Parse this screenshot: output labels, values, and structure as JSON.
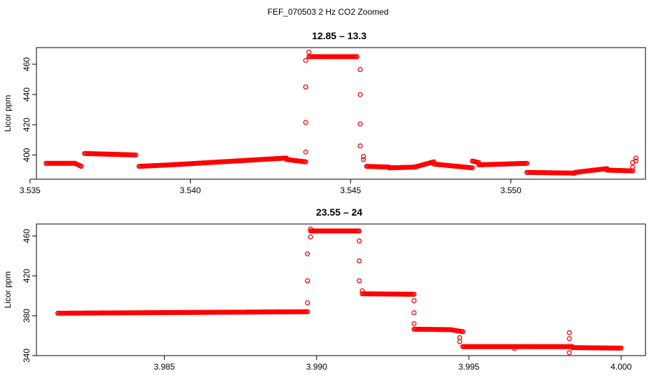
{
  "figure": {
    "title": "FEF_070503  2 Hz CO2 Zoomed",
    "point_color": "#ff0000"
  },
  "chart_data": [
    {
      "type": "scatter",
      "title": "12.85 – 13.3",
      "xlabel": "",
      "ylabel": "Licor ppm",
      "xlim": [
        3.5352,
        3.5542
      ],
      "ylim": [
        384,
        471
      ],
      "xticks": [
        3.535,
        3.54,
        3.545,
        3.55
      ],
      "xtick_labels": [
        "3.535",
        "3.540",
        "3.545",
        "3.550"
      ],
      "yticks": [
        400,
        420,
        440,
        460
      ],
      "ytick_labels": [
        "400",
        "420",
        "440",
        "460"
      ],
      "segments": [
        {
          "x0": 3.5355,
          "x1": 3.5364,
          "y0": 394.5,
          "y1": 394.5
        },
        {
          "x0": 3.5364,
          "x1": 3.5366,
          "y0": 394.5,
          "y1": 392.5
        },
        {
          "x0": 3.5367,
          "x1": 3.5383,
          "y0": 401,
          "y1": 400
        },
        {
          "x0": 3.5384,
          "x1": 3.5394,
          "y0": 392.5,
          "y1": 393.5
        },
        {
          "x0": 3.5394,
          "x1": 3.543,
          "y0": 393.5,
          "y1": 398
        },
        {
          "x0": 3.543,
          "x1": 3.5436,
          "y0": 397,
          "y1": 395.5
        },
        {
          "x0": 3.5437,
          "x1": 3.5452,
          "y0": 465,
          "y1": 465
        },
        {
          "x0": 3.5455,
          "x1": 3.5462,
          "y0": 392.5,
          "y1": 392
        },
        {
          "x0": 3.5462,
          "x1": 3.547,
          "y0": 391.5,
          "y1": 392
        },
        {
          "x0": 3.547,
          "x1": 3.5476,
          "y0": 392,
          "y1": 395.5
        },
        {
          "x0": 3.5476,
          "x1": 3.5488,
          "y0": 394,
          "y1": 391.5
        },
        {
          "x0": 3.5488,
          "x1": 3.549,
          "y0": 396,
          "y1": 395
        },
        {
          "x0": 3.549,
          "x1": 3.5505,
          "y0": 393.5,
          "y1": 394.5
        },
        {
          "x0": 3.5505,
          "x1": 3.552,
          "y0": 388.5,
          "y1": 388
        },
        {
          "x0": 3.552,
          "x1": 3.553,
          "y0": 388.5,
          "y1": 391
        },
        {
          "x0": 3.553,
          "x1": 3.5538,
          "y0": 390,
          "y1": 389.5
        }
      ],
      "points": [
        {
          "x": 3.5436,
          "y": 402
        },
        {
          "x": 3.5436,
          "y": 421.5
        },
        {
          "x": 3.5436,
          "y": 445
        },
        {
          "x": 3.5436,
          "y": 462.5
        },
        {
          "x": 3.5437,
          "y": 468
        },
        {
          "x": 3.5453,
          "y": 456.5
        },
        {
          "x": 3.5453,
          "y": 440
        },
        {
          "x": 3.5453,
          "y": 420.5
        },
        {
          "x": 3.5453,
          "y": 406
        },
        {
          "x": 3.5454,
          "y": 399
        },
        {
          "x": 3.5454,
          "y": 397
        },
        {
          "x": 3.5538,
          "y": 392
        },
        {
          "x": 3.5538,
          "y": 395
        },
        {
          "x": 3.5539,
          "y": 398
        },
        {
          "x": 3.5539,
          "y": 396
        }
      ]
    },
    {
      "type": "scatter",
      "title": "23.55 – 24",
      "xlabel": "",
      "ylabel": "Licor ppm",
      "xlim": [
        3.9808,
        4.0008
      ],
      "ylim": [
        340,
        472
      ],
      "xticks": [
        3.985,
        3.99,
        3.995,
        4.0
      ],
      "xtick_labels": [
        "3.985",
        "3.990",
        "3.995",
        "4.000"
      ],
      "yticks": [
        340,
        380,
        420,
        460
      ],
      "ytick_labels": [
        "340",
        "380",
        "420",
        "460"
      ],
      "segments": [
        {
          "x0": 3.9815,
          "x1": 3.9897,
          "y0": 382.5,
          "y1": 384
        },
        {
          "x0": 3.9898,
          "x1": 3.9914,
          "y0": 465,
          "y1": 465
        },
        {
          "x0": 3.9915,
          "x1": 3.9932,
          "y0": 402,
          "y1": 401.5
        },
        {
          "x0": 3.9932,
          "x1": 3.9944,
          "y0": 366.5,
          "y1": 366
        },
        {
          "x0": 3.9944,
          "x1": 3.9948,
          "y0": 366,
          "y1": 364
        },
        {
          "x0": 3.9948,
          "x1": 3.9984,
          "y0": 349,
          "y1": 349
        },
        {
          "x0": 3.9984,
          "x1": 4.0,
          "y0": 348,
          "y1": 347.5
        }
      ],
      "points": [
        {
          "x": 3.9897,
          "y": 393
        },
        {
          "x": 3.9897,
          "y": 415
        },
        {
          "x": 3.9897,
          "y": 442
        },
        {
          "x": 3.9898,
          "y": 459
        },
        {
          "x": 3.9898,
          "y": 467
        },
        {
          "x": 3.9914,
          "y": 455
        },
        {
          "x": 3.9914,
          "y": 435
        },
        {
          "x": 3.9914,
          "y": 415
        },
        {
          "x": 3.9915,
          "y": 405
        },
        {
          "x": 3.9932,
          "y": 395
        },
        {
          "x": 3.9932,
          "y": 383
        },
        {
          "x": 3.9932,
          "y": 372
        },
        {
          "x": 3.9947,
          "y": 358
        },
        {
          "x": 3.9947,
          "y": 354
        },
        {
          "x": 3.9965,
          "y": 347
        },
        {
          "x": 3.9983,
          "y": 363
        },
        {
          "x": 3.9983,
          "y": 357
        },
        {
          "x": 3.9983,
          "y": 343
        }
      ]
    }
  ]
}
